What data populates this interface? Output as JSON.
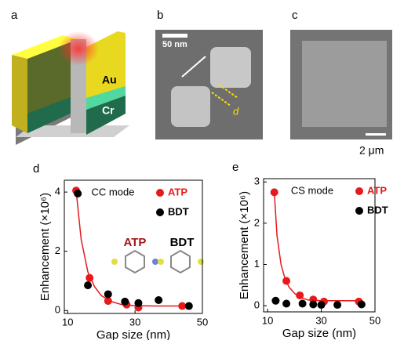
{
  "panels": {
    "a": {
      "label": "a",
      "texts": [
        "Au",
        "Cr"
      ]
    },
    "b": {
      "label": "b",
      "scale_bar": "50 nm",
      "gap_label": "d"
    },
    "c": {
      "label": "c",
      "scale_bar": "2 μm"
    }
  },
  "chart_data": [
    {
      "type": "scatter",
      "panel_label": "d",
      "legend_title": "CC mode",
      "x_label": "Gap size (nm)",
      "y_label": "Enhancement (×10⁶)",
      "xlim": [
        9,
        50
      ],
      "ylim": [
        -0.1,
        4.4
      ],
      "xticks": [
        10,
        30,
        50
      ],
      "yticks": [
        0,
        2,
        4
      ],
      "annotations": [
        {
          "text": "ATP",
          "color": "#a01818"
        },
        {
          "text": "BDT",
          "color": "#000000"
        }
      ],
      "series": [
        {
          "name": "ATP",
          "color": "#e8191a",
          "x": [
            12.5,
            16.5,
            22,
            27.5,
            31,
            44
          ],
          "values": [
            4.05,
            1.1,
            0.32,
            0.2,
            0.1,
            0.15
          ]
        },
        {
          "name": "BDT",
          "color": "#000000",
          "x": [
            13,
            16,
            22,
            27,
            31,
            37,
            46
          ],
          "values": [
            3.95,
            0.85,
            0.55,
            0.3,
            0.25,
            0.35,
            0.15
          ]
        }
      ],
      "fit": {
        "color": "#e8191a",
        "x": [
          12.5,
          14,
          16,
          18,
          20,
          23,
          26,
          30,
          36,
          45
        ],
        "values": [
          4.05,
          2.4,
          1.3,
          0.8,
          0.5,
          0.3,
          0.2,
          0.16,
          0.15,
          0.15
        ]
      }
    },
    {
      "type": "scatter",
      "panel_label": "e",
      "legend_title": "CS mode",
      "x_label": "Gap size (nm)",
      "y_label": "Enhancement (×10⁶)",
      "xlim": [
        8.5,
        50
      ],
      "ylim": [
        -0.15,
        3.08
      ],
      "xticks": [
        10,
        30,
        50
      ],
      "yticks": [
        0,
        1,
        2,
        3
      ],
      "series": [
        {
          "name": "ATP",
          "color": "#e8191a",
          "x": [
            12.5,
            17,
            22,
            27,
            31,
            44
          ],
          "values": [
            2.75,
            0.6,
            0.25,
            0.15,
            0.1,
            0.1
          ]
        },
        {
          "name": "BDT",
          "color": "#000000",
          "x": [
            13,
            17,
            23,
            27,
            30,
            36,
            45
          ],
          "values": [
            0.12,
            0.05,
            0.05,
            0.03,
            0.02,
            0.02,
            0.03
          ]
        }
      ],
      "fit": {
        "color": "#e8191a",
        "x": [
          12.5,
          13.5,
          15,
          16.5,
          18,
          20,
          22,
          25,
          30,
          36,
          45
        ],
        "values": [
          2.75,
          1.7,
          1.0,
          0.65,
          0.45,
          0.3,
          0.2,
          0.14,
          0.12,
          0.12,
          0.12
        ]
      }
    }
  ]
}
